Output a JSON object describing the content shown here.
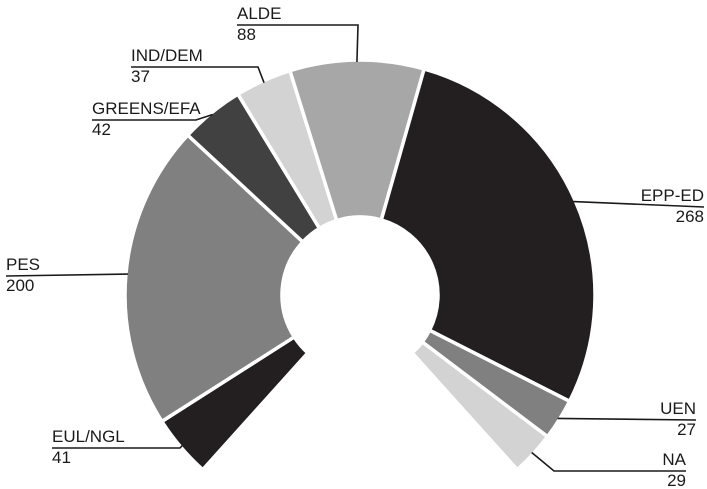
{
  "chart_data": {
    "type": "pie",
    "variant": "semi-circle donut",
    "title": "",
    "legend": "none",
    "categories": [
      "EUL/NGL",
      "PES",
      "GREENS/EFA",
      "IND/DEM",
      "ALDE",
      "EPP-ED",
      "UEN",
      "NA"
    ],
    "values": [
      41,
      200,
      42,
      37,
      88,
      268,
      27,
      29
    ],
    "colors": [
      "#231f20",
      "#808080",
      "#414141",
      "#d3d3d3",
      "#a7a7a7",
      "#231f20",
      "#808080",
      "#d3d3d3"
    ],
    "slices": [
      {
        "label": "EUL/NGL",
        "value": 41,
        "color": "#231f20"
      },
      {
        "label": "PES",
        "value": 200,
        "color": "#808080"
      },
      {
        "label": "GREENS/EFA",
        "value": 42,
        "color": "#414141"
      },
      {
        "label": "IND/DEM",
        "value": 37,
        "color": "#d3d3d3"
      },
      {
        "label": "ALDE",
        "value": 88,
        "color": "#a7a7a7"
      },
      {
        "label": "EPP-ED",
        "value": 268,
        "color": "#231f20"
      },
      {
        "label": "UEN",
        "value": 27,
        "color": "#808080"
      },
      {
        "label": "NA",
        "value": 29,
        "color": "#d3d3d3"
      }
    ]
  }
}
